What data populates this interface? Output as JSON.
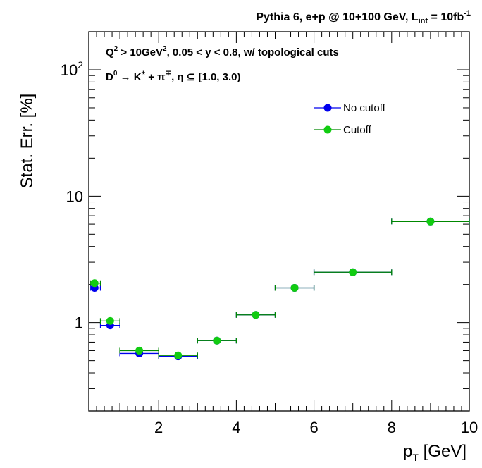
{
  "chart_data": {
    "type": "scatter",
    "title_main": "Pythia 6, e+p @ 10+100 GeV, L",
    "title_sub": "int",
    "title_tail": " = 10fb",
    "title_sup": "-1",
    "annotation_line1": {
      "q": "Q",
      "q_sup": "2",
      "mid": " > 10GeV",
      "mid_sup": "2",
      "tail": ", 0.05 < y < 0.8, w/ topological cuts"
    },
    "annotation_line2": {
      "d": "D",
      "d_sup": "0",
      "arrow": " → K",
      "k_sup": "±",
      "plus": " + π",
      "pi_sup": "∓",
      "eta": ", η ⊆ [1.0, 3.0)"
    },
    "xlabel": "p",
    "xlabel_sub": "T",
    "xlabel_tail": " [GeV]",
    "ylabel": "Stat. Err. [%]",
    "xlim": [
      0.2,
      10
    ],
    "ylim": [
      0.2,
      200
    ],
    "y_scale": "log",
    "x_ticks": [
      {
        "value": 2,
        "label": "2"
      },
      {
        "value": 4,
        "label": "4"
      },
      {
        "value": 6,
        "label": "6"
      },
      {
        "value": 8,
        "label": "8"
      },
      {
        "value": 10,
        "label": "10"
      }
    ],
    "y_ticks": [
      {
        "value": 1,
        "label": "1"
      },
      {
        "value": 10,
        "label": "10"
      },
      {
        "value": 100,
        "label": "10",
        "sup": "2"
      }
    ],
    "grid": false,
    "legend_position": "top-right",
    "series": [
      {
        "name": "No cutoff",
        "color": "#0000ee",
        "points": [
          {
            "x": 0.35,
            "xlow": 0.25,
            "xhigh": 0.5,
            "y": 1.88
          },
          {
            "x": 0.75,
            "xlow": 0.5,
            "xhigh": 1.0,
            "y": 0.95
          },
          {
            "x": 1.5,
            "xlow": 1.0,
            "xhigh": 2.0,
            "y": 0.57
          },
          {
            "x": 2.5,
            "xlow": 2.0,
            "xhigh": 3.0,
            "y": 0.54
          },
          {
            "x": 3.5,
            "xlow": 3.0,
            "xhigh": 4.0,
            "y": 0.72
          },
          {
            "x": 4.5,
            "xlow": 4.0,
            "xhigh": 5.0,
            "y": 1.15
          },
          {
            "x": 5.5,
            "xlow": 5.0,
            "xhigh": 6.0,
            "y": 1.88
          },
          {
            "x": 7.0,
            "xlow": 6.0,
            "xhigh": 8.0,
            "y": 2.5
          },
          {
            "x": 9.0,
            "xlow": 8.0,
            "xhigh": 10.0,
            "y": 6.3
          }
        ]
      },
      {
        "name": "Cutoff",
        "color": "#11cc11",
        "points": [
          {
            "x": 0.35,
            "xlow": 0.25,
            "xhigh": 0.5,
            "y": 2.05
          },
          {
            "x": 0.75,
            "xlow": 0.5,
            "xhigh": 1.0,
            "y": 1.03
          },
          {
            "x": 1.5,
            "xlow": 1.0,
            "xhigh": 2.0,
            "y": 0.6
          },
          {
            "x": 2.5,
            "xlow": 2.0,
            "xhigh": 3.0,
            "y": 0.55
          },
          {
            "x": 3.5,
            "xlow": 3.0,
            "xhigh": 4.0,
            "y": 0.72
          },
          {
            "x": 4.5,
            "xlow": 4.0,
            "xhigh": 5.0,
            "y": 1.15
          },
          {
            "x": 5.5,
            "xlow": 5.0,
            "xhigh": 6.0,
            "y": 1.88
          },
          {
            "x": 7.0,
            "xlow": 6.0,
            "xhigh": 8.0,
            "y": 2.5
          },
          {
            "x": 9.0,
            "xlow": 8.0,
            "xhigh": 10.0,
            "y": 6.3
          }
        ]
      }
    ],
    "legend_line_color": "#008800"
  }
}
